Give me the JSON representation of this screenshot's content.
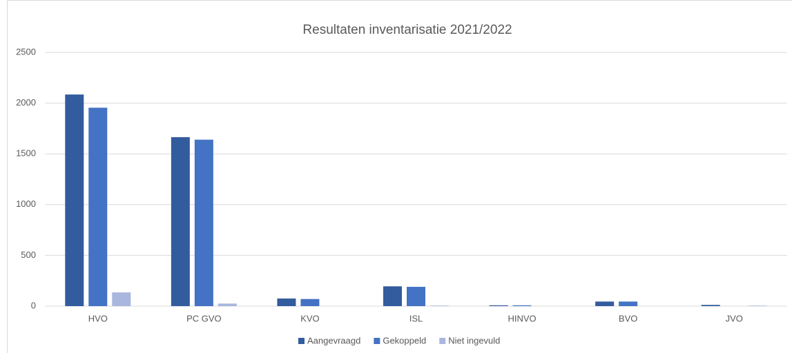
{
  "chart_data": {
    "type": "bar",
    "title": "Resultaten inventarisatie 2021/2022",
    "categories": [
      "HVO",
      "PC GVO",
      "KVO",
      "ISL",
      "HINVO",
      "BVO",
      "JVO"
    ],
    "series": [
      {
        "name": "Aangevraagd",
        "color": "#335c9e",
        "values": [
          2085,
          1665,
          75,
          195,
          8,
          45,
          12
        ]
      },
      {
        "name": "Gekoppeld",
        "color": "#4472c4",
        "values": [
          1955,
          1640,
          70,
          190,
          8,
          45,
          0
        ]
      },
      {
        "name": "Niet ingevuld",
        "color": "#a9b6de",
        "values": [
          135,
          25,
          0,
          5,
          0,
          0,
          5
        ]
      }
    ],
    "ylim": [
      0,
      2500
    ],
    "yticks": [
      0,
      500,
      1000,
      1500,
      2000,
      2500
    ],
    "grid": true,
    "legend": "bottom"
  }
}
